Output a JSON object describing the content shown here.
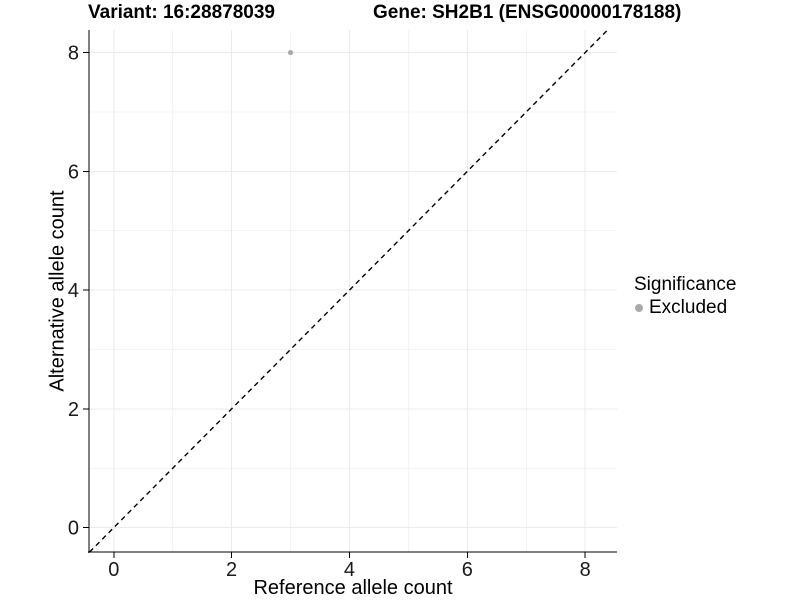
{
  "chart_data": {
    "type": "scatter",
    "titles": [
      "Variant: 16:28878039",
      "Gene: SH2B1 (ENSG00000178188)"
    ],
    "xlabel": "Reference allele count",
    "ylabel": "Alternative allele count",
    "xlim": [
      -0.42,
      8.54
    ],
    "ylim": [
      -0.41,
      8.38
    ],
    "xticks": [
      0,
      2,
      4,
      6,
      8
    ],
    "yticks": [
      0,
      2,
      4,
      6,
      8
    ],
    "minor_xticks": [
      1,
      3,
      5,
      7
    ],
    "minor_yticks": [
      1,
      3,
      5,
      7
    ],
    "grid": "major+minor",
    "series": [
      {
        "name": "Excluded",
        "color": "#aaaaaa",
        "points": [
          {
            "x": 3,
            "y": 8
          }
        ]
      }
    ],
    "reference_line": {
      "slope": 1,
      "intercept": 0,
      "linetype": "dashed",
      "color": "#000000"
    },
    "legend": {
      "position": "right",
      "title": "Significance",
      "items": [
        {
          "label": "Excluded",
          "color": "#aaaaaa"
        }
      ]
    }
  },
  "colors": {
    "background": "#ffffff",
    "grid_major": "#ebebeb",
    "grid_minor": "#f4f4f4",
    "axis_line": "#000000",
    "tick_text": "#1a1a1a",
    "point": "#aaaaaa"
  }
}
